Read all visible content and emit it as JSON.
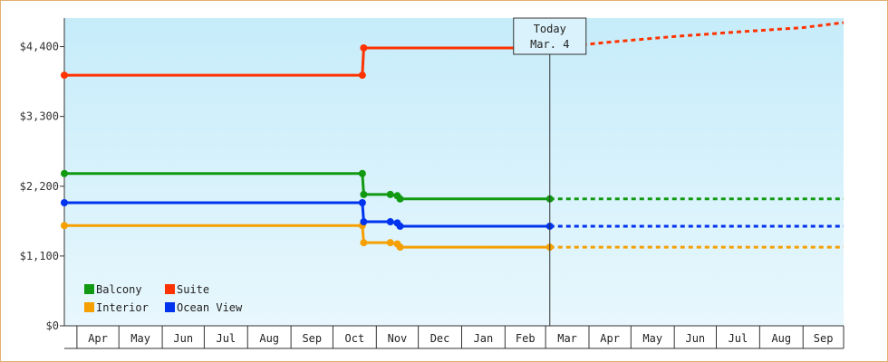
{
  "chart_data": {
    "type": "line",
    "title": "",
    "xlabel": "",
    "ylabel": "",
    "x_range": [
      "2023-03-23",
      "2024-09-30"
    ],
    "ylim": [
      0,
      4850
    ],
    "y_ticks": [
      0,
      1100,
      2200,
      3300,
      4400
    ],
    "y_tick_labels": [
      "$0",
      "$1,100",
      "$2,200",
      "$3,300",
      "$4,400"
    ],
    "x_ticks": [
      {
        "label": "Apr",
        "date": "2023-04-01"
      },
      {
        "label": "May",
        "date": "2023-05-01"
      },
      {
        "label": "Jun",
        "date": "2023-06-01"
      },
      {
        "label": "Jul",
        "date": "2023-07-01"
      },
      {
        "label": "Aug",
        "date": "2023-08-01"
      },
      {
        "label": "Sep",
        "date": "2023-09-01"
      },
      {
        "label": "Oct",
        "date": "2023-10-01"
      },
      {
        "label": "Nov",
        "date": "2023-11-01"
      },
      {
        "label": "Dec",
        "date": "2023-12-01"
      },
      {
        "label": "Jan",
        "date": "2024-01-01"
      },
      {
        "label": "Feb",
        "date": "2024-02-01"
      },
      {
        "label": "Mar",
        "date": "2024-03-01"
      },
      {
        "label": "Apr",
        "date": "2024-04-01"
      },
      {
        "label": "May",
        "date": "2024-05-01"
      },
      {
        "label": "Jun",
        "date": "2024-06-01"
      },
      {
        "label": "Jul",
        "date": "2024-07-01"
      },
      {
        "label": "Aug",
        "date": "2024-08-01"
      },
      {
        "label": "Sep",
        "date": "2024-09-01"
      },
      {
        "label": "",
        "date": "2024-09-30"
      }
    ],
    "today": {
      "line1": "Today",
      "line2": "Mar. 4",
      "date": "2024-03-04"
    },
    "grid": false,
    "legend_position": "bottom-left",
    "series": [
      {
        "name": "Balcony",
        "color": "#119911",
        "points": [
          {
            "x": "2023-03-23",
            "y": 2400
          },
          {
            "x": "2023-10-22",
            "y": 2400
          },
          {
            "x": "2023-10-23",
            "y": 2070
          },
          {
            "x": "2023-11-11",
            "y": 2070
          },
          {
            "x": "2023-11-16",
            "y": 2050
          },
          {
            "x": "2023-11-18",
            "y": 2000
          },
          {
            "x": "2024-03-04",
            "y": 2000
          }
        ],
        "forecast": [
          {
            "x": "2024-03-04",
            "y": 2000
          },
          {
            "x": "2024-09-30",
            "y": 2000
          }
        ]
      },
      {
        "name": "Suite",
        "color": "#ff3300",
        "points": [
          {
            "x": "2023-03-23",
            "y": 3950
          },
          {
            "x": "2023-10-22",
            "y": 3950
          },
          {
            "x": "2023-10-23",
            "y": 4380
          },
          {
            "x": "2024-03-04",
            "y": 4380
          }
        ],
        "forecast": [
          {
            "x": "2024-03-04",
            "y": 4380
          },
          {
            "x": "2024-04-15",
            "y": 4470
          },
          {
            "x": "2024-06-01",
            "y": 4560
          },
          {
            "x": "2024-07-15",
            "y": 4630
          },
          {
            "x": "2024-09-01",
            "y": 4700
          },
          {
            "x": "2024-09-30",
            "y": 4780
          }
        ]
      },
      {
        "name": "Interior",
        "color": "#f5a000",
        "points": [
          {
            "x": "2023-03-23",
            "y": 1580
          },
          {
            "x": "2023-10-22",
            "y": 1580
          },
          {
            "x": "2023-10-23",
            "y": 1310
          },
          {
            "x": "2023-11-11",
            "y": 1310
          },
          {
            "x": "2023-11-16",
            "y": 1290
          },
          {
            "x": "2023-11-18",
            "y": 1240
          },
          {
            "x": "2024-03-04",
            "y": 1240
          }
        ],
        "forecast": [
          {
            "x": "2024-03-04",
            "y": 1240
          },
          {
            "x": "2024-09-30",
            "y": 1240
          }
        ]
      },
      {
        "name": "Ocean View",
        "color": "#0033ee",
        "points": [
          {
            "x": "2023-03-23",
            "y": 1940
          },
          {
            "x": "2023-10-22",
            "y": 1940
          },
          {
            "x": "2023-10-23",
            "y": 1640
          },
          {
            "x": "2023-11-11",
            "y": 1640
          },
          {
            "x": "2023-11-16",
            "y": 1620
          },
          {
            "x": "2023-11-18",
            "y": 1570
          },
          {
            "x": "2024-03-04",
            "y": 1570
          }
        ],
        "forecast": [
          {
            "x": "2024-03-04",
            "y": 1570
          },
          {
            "x": "2024-09-30",
            "y": 1570
          }
        ]
      }
    ]
  }
}
